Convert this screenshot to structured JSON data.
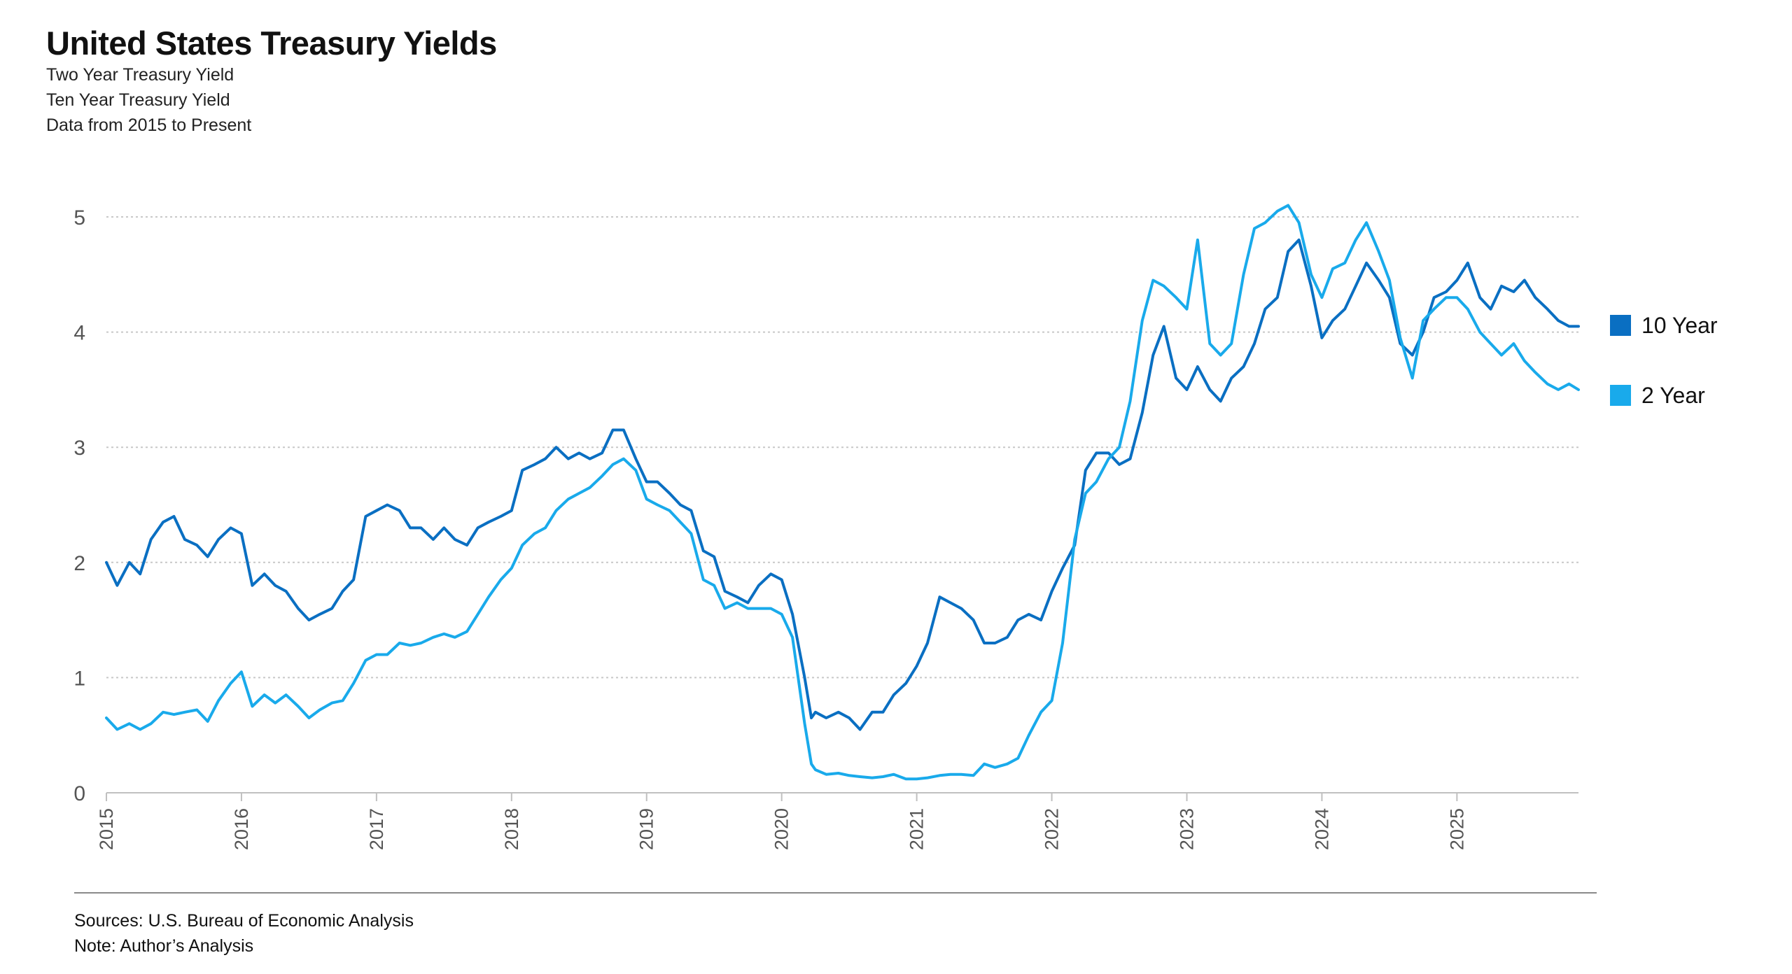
{
  "title": "United States Treasury Yields",
  "subtitles": [
    "Two Year Treasury Yield",
    "Ten Year Treasury Yield",
    "Data from 2015 to Present"
  ],
  "footer": {
    "sources": "Sources:  U.S. Bureau of Economic Analysis",
    "note": "Note: Author’s Analysis"
  },
  "colors": {
    "ten_year": "#0a6fc2",
    "two_year": "#19aaeb",
    "grid": "#c8c8c8",
    "axis": "#c0c0c0",
    "tick_text": "#555555"
  },
  "chart_data": {
    "type": "line",
    "title": "United States Treasury Yields",
    "xlabel": "",
    "ylabel": "",
    "xlim": [
      2015.0,
      2025.9
    ],
    "ylim": [
      0,
      5
    ],
    "yticks": [
      0,
      1,
      2,
      3,
      4,
      5
    ],
    "xticks": [
      "2015",
      "2016",
      "2017",
      "2018",
      "2019",
      "2020",
      "2021",
      "2022",
      "2023",
      "2024",
      "2025"
    ],
    "grid": "horizontal dotted",
    "legend": "right",
    "series": [
      {
        "name": "10 Year",
        "x": [
          2015.0,
          2015.08,
          2015.17,
          2015.25,
          2015.33,
          2015.42,
          2015.5,
          2015.58,
          2015.67,
          2015.75,
          2015.83,
          2015.92,
          2016.0,
          2016.08,
          2016.17,
          2016.25,
          2016.33,
          2016.42,
          2016.5,
          2016.58,
          2016.67,
          2016.75,
          2016.83,
          2016.92,
          2017.0,
          2017.08,
          2017.17,
          2017.25,
          2017.33,
          2017.42,
          2017.5,
          2017.58,
          2017.67,
          2017.75,
          2017.83,
          2017.92,
          2018.0,
          2018.08,
          2018.17,
          2018.25,
          2018.33,
          2018.42,
          2018.5,
          2018.58,
          2018.67,
          2018.75,
          2018.83,
          2018.92,
          2019.0,
          2019.08,
          2019.17,
          2019.25,
          2019.33,
          2019.42,
          2019.5,
          2019.58,
          2019.67,
          2019.75,
          2019.83,
          2019.92,
          2020.0,
          2020.08,
          2020.17,
          2020.22,
          2020.25,
          2020.33,
          2020.42,
          2020.5,
          2020.58,
          2020.67,
          2020.75,
          2020.83,
          2020.92,
          2021.0,
          2021.08,
          2021.17,
          2021.25,
          2021.33,
          2021.42,
          2021.5,
          2021.58,
          2021.67,
          2021.75,
          2021.83,
          2021.92,
          2022.0,
          2022.08,
          2022.17,
          2022.25,
          2022.33,
          2022.42,
          2022.5,
          2022.58,
          2022.67,
          2022.75,
          2022.83,
          2022.92,
          2023.0,
          2023.08,
          2023.17,
          2023.25,
          2023.33,
          2023.42,
          2023.5,
          2023.58,
          2023.67,
          2023.75,
          2023.83,
          2023.92,
          2024.0,
          2024.08,
          2024.17,
          2024.25,
          2024.33,
          2024.42,
          2024.5,
          2024.58,
          2024.67,
          2024.75,
          2024.83,
          2024.92,
          2025.0,
          2025.08,
          2025.17,
          2025.25,
          2025.33,
          2025.42,
          2025.5,
          2025.58,
          2025.67,
          2025.75,
          2025.83,
          2025.9
        ],
        "values": [
          2.0,
          1.8,
          2.0,
          1.9,
          2.2,
          2.35,
          2.4,
          2.2,
          2.15,
          2.05,
          2.2,
          2.3,
          2.25,
          1.8,
          1.9,
          1.8,
          1.75,
          1.6,
          1.5,
          1.55,
          1.6,
          1.75,
          1.85,
          2.4,
          2.45,
          2.5,
          2.45,
          2.3,
          2.3,
          2.2,
          2.3,
          2.2,
          2.15,
          2.3,
          2.35,
          2.4,
          2.45,
          2.8,
          2.85,
          2.9,
          3.0,
          2.9,
          2.95,
          2.9,
          2.95,
          3.15,
          3.15,
          2.9,
          2.7,
          2.7,
          2.6,
          2.5,
          2.45,
          2.1,
          2.05,
          1.75,
          1.7,
          1.65,
          1.8,
          1.9,
          1.85,
          1.55,
          1.0,
          0.65,
          0.7,
          0.65,
          0.7,
          0.65,
          0.55,
          0.7,
          0.7,
          0.85,
          0.95,
          1.1,
          1.3,
          1.7,
          1.65,
          1.6,
          1.5,
          1.3,
          1.3,
          1.35,
          1.5,
          1.55,
          1.5,
          1.75,
          1.95,
          2.15,
          2.8,
          2.95,
          2.95,
          2.85,
          2.9,
          3.3,
          3.8,
          4.05,
          3.6,
          3.5,
          3.7,
          3.5,
          3.4,
          3.6,
          3.7,
          3.9,
          4.2,
          4.3,
          4.7,
          4.8,
          4.4,
          3.95,
          4.1,
          4.2,
          4.4,
          4.6,
          4.45,
          4.3,
          3.9,
          3.8,
          4.0,
          4.3,
          4.35,
          4.45,
          4.6,
          4.3,
          4.2,
          4.4,
          4.35,
          4.45,
          4.3,
          4.2,
          4.1,
          4.05,
          4.05
        ]
      },
      {
        "name": "2 Year",
        "x": [
          2015.0,
          2015.08,
          2015.17,
          2015.25,
          2015.33,
          2015.42,
          2015.5,
          2015.58,
          2015.67,
          2015.75,
          2015.83,
          2015.92,
          2016.0,
          2016.08,
          2016.17,
          2016.25,
          2016.33,
          2016.42,
          2016.5,
          2016.58,
          2016.67,
          2016.75,
          2016.83,
          2016.92,
          2017.0,
          2017.08,
          2017.17,
          2017.25,
          2017.33,
          2017.42,
          2017.5,
          2017.58,
          2017.67,
          2017.75,
          2017.83,
          2017.92,
          2018.0,
          2018.08,
          2018.17,
          2018.25,
          2018.33,
          2018.42,
          2018.5,
          2018.58,
          2018.67,
          2018.75,
          2018.83,
          2018.92,
          2019.0,
          2019.08,
          2019.17,
          2019.25,
          2019.33,
          2019.42,
          2019.5,
          2019.58,
          2019.67,
          2019.75,
          2019.83,
          2019.92,
          2020.0,
          2020.08,
          2020.17,
          2020.22,
          2020.25,
          2020.33,
          2020.42,
          2020.5,
          2020.58,
          2020.67,
          2020.75,
          2020.83,
          2020.92,
          2021.0,
          2021.08,
          2021.17,
          2021.25,
          2021.33,
          2021.42,
          2021.5,
          2021.58,
          2021.67,
          2021.75,
          2021.83,
          2021.92,
          2022.0,
          2022.08,
          2022.17,
          2022.25,
          2022.33,
          2022.42,
          2022.5,
          2022.58,
          2022.67,
          2022.75,
          2022.83,
          2022.92,
          2023.0,
          2023.08,
          2023.17,
          2023.25,
          2023.33,
          2023.42,
          2023.5,
          2023.58,
          2023.67,
          2023.75,
          2023.83,
          2023.92,
          2024.0,
          2024.08,
          2024.17,
          2024.25,
          2024.33,
          2024.42,
          2024.5,
          2024.58,
          2024.67,
          2024.75,
          2024.83,
          2024.92,
          2025.0,
          2025.08,
          2025.17,
          2025.25,
          2025.33,
          2025.42,
          2025.5,
          2025.58,
          2025.67,
          2025.75,
          2025.83,
          2025.9
        ],
        "values": [
          0.65,
          0.55,
          0.6,
          0.55,
          0.6,
          0.7,
          0.68,
          0.7,
          0.72,
          0.62,
          0.8,
          0.95,
          1.05,
          0.75,
          0.85,
          0.78,
          0.85,
          0.75,
          0.65,
          0.72,
          0.78,
          0.8,
          0.95,
          1.15,
          1.2,
          1.2,
          1.3,
          1.28,
          1.3,
          1.35,
          1.38,
          1.35,
          1.4,
          1.55,
          1.7,
          1.85,
          1.95,
          2.15,
          2.25,
          2.3,
          2.45,
          2.55,
          2.6,
          2.65,
          2.75,
          2.85,
          2.9,
          2.8,
          2.55,
          2.5,
          2.45,
          2.35,
          2.25,
          1.85,
          1.8,
          1.6,
          1.65,
          1.6,
          1.6,
          1.6,
          1.55,
          1.35,
          0.6,
          0.25,
          0.2,
          0.16,
          0.17,
          0.15,
          0.14,
          0.13,
          0.14,
          0.16,
          0.12,
          0.12,
          0.13,
          0.15,
          0.16,
          0.16,
          0.15,
          0.25,
          0.22,
          0.25,
          0.3,
          0.5,
          0.7,
          0.8,
          1.3,
          2.2,
          2.6,
          2.7,
          2.9,
          3.0,
          3.4,
          4.1,
          4.45,
          4.4,
          4.3,
          4.2,
          4.8,
          3.9,
          3.8,
          3.9,
          4.5,
          4.9,
          4.95,
          5.05,
          5.1,
          4.95,
          4.5,
          4.3,
          4.55,
          4.6,
          4.8,
          4.95,
          4.7,
          4.45,
          3.95,
          3.6,
          4.1,
          4.2,
          4.3,
          4.3,
          4.2,
          4.0,
          3.9,
          3.8,
          3.9,
          3.75,
          3.65,
          3.55,
          3.5,
          3.55,
          3.5
        ]
      }
    ]
  }
}
